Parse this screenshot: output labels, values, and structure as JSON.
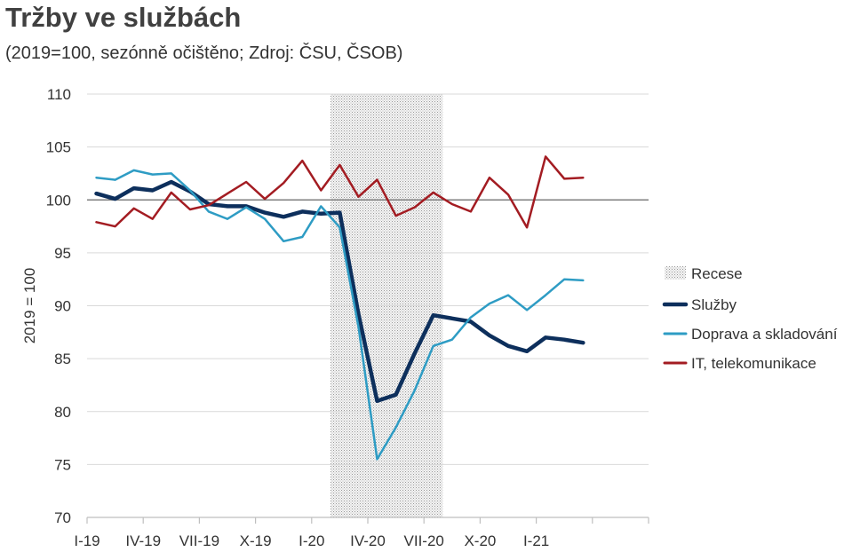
{
  "title": "Tržby ve službách",
  "subtitle": "(2019=100, sezónně očištěno; Zdroj: ČSU, ČSOB)",
  "chart_data": {
    "type": "line",
    "ylabel": "2019 = 100",
    "ylim": [
      70,
      110
    ],
    "yticks": [
      "70",
      "75",
      "80",
      "85",
      "90",
      "95",
      "100",
      "105",
      "110"
    ],
    "xtick_labels": [
      "I-19",
      "IV-19",
      "VII-19",
      "X-19",
      "I-20",
      "IV-20",
      "VII-20",
      "X-20",
      "I-21"
    ],
    "months": 30,
    "reference_line": 100,
    "recession": {
      "label": "Recese",
      "from_month": 13,
      "to_month": 19
    },
    "series": [
      {
        "name": "Služby",
        "color": "#0d2f5c",
        "width": 4.5,
        "values": [
          100.6,
          100.1,
          101.1,
          100.9,
          101.7,
          100.8,
          99.6,
          99.4,
          99.4,
          98.8,
          98.4,
          98.9,
          98.7,
          98.8,
          89.2,
          81.0,
          81.6,
          85.5,
          89.1,
          88.8,
          88.5,
          87.2,
          86.2,
          85.7,
          87.0,
          86.8,
          86.5
        ]
      },
      {
        "name": "Doprava a skladování",
        "color": "#2e9cc4",
        "width": 2.5,
        "values": [
          102.1,
          101.9,
          102.8,
          102.4,
          102.5,
          100.9,
          98.9,
          98.2,
          99.3,
          98.2,
          96.1,
          96.5,
          99.4,
          97.4,
          88.0,
          75.5,
          78.5,
          82.0,
          86.2,
          86.8,
          88.9,
          90.2,
          91.0,
          89.6,
          91.0,
          92.5,
          92.4
        ]
      },
      {
        "name": "IT, telekomunikace",
        "color": "#a31c22",
        "width": 2.5,
        "values": [
          97.9,
          97.5,
          99.2,
          98.2,
          100.7,
          99.1,
          99.5,
          100.6,
          101.7,
          100.1,
          101.6,
          103.7,
          100.9,
          103.3,
          100.3,
          101.9,
          98.5,
          99.3,
          100.7,
          99.6,
          98.9,
          102.1,
          100.5,
          97.4,
          104.1,
          102.0,
          102.1
        ]
      }
    ]
  }
}
